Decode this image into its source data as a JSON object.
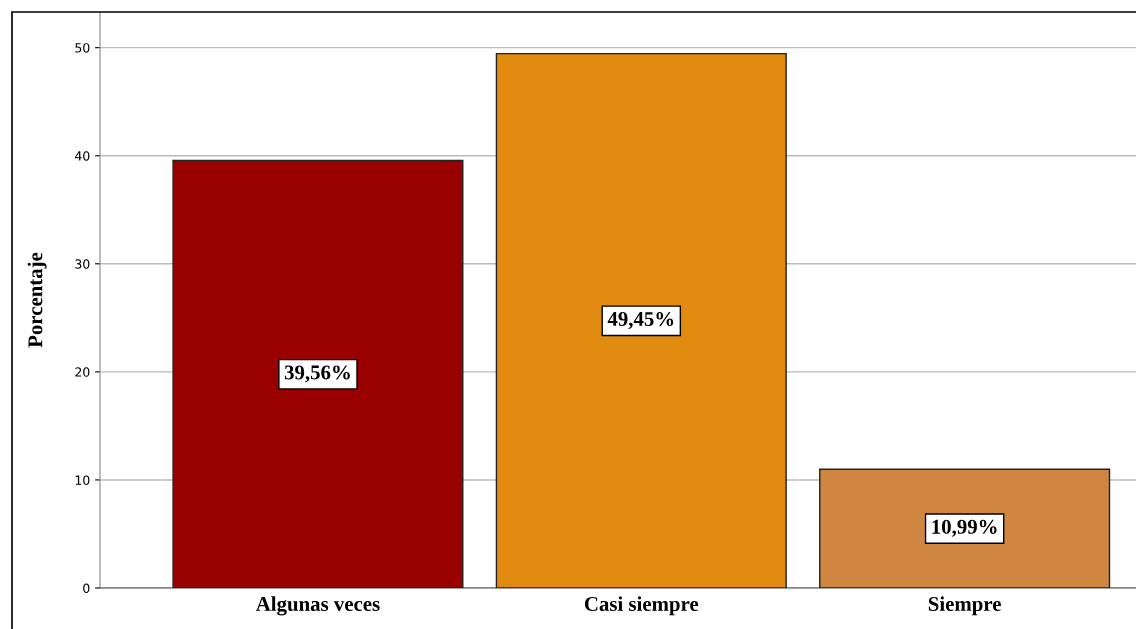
{
  "chart_data": {
    "type": "bar",
    "ylabel": "Porcentaje",
    "categories": [
      "Algunas veces",
      "Casi siempre",
      "Siempre"
    ],
    "values": [
      39.56,
      49.45,
      10.99
    ],
    "colors": [
      "#990000",
      "#e08a10",
      "#cf8640"
    ],
    "value_labels": [
      "39,56%",
      "49,45%",
      "10,99%"
    ],
    "ylim": [
      0,
      53.3
    ],
    "yticks": [
      0,
      10,
      20,
      30,
      40,
      50
    ],
    "grid": "y"
  }
}
